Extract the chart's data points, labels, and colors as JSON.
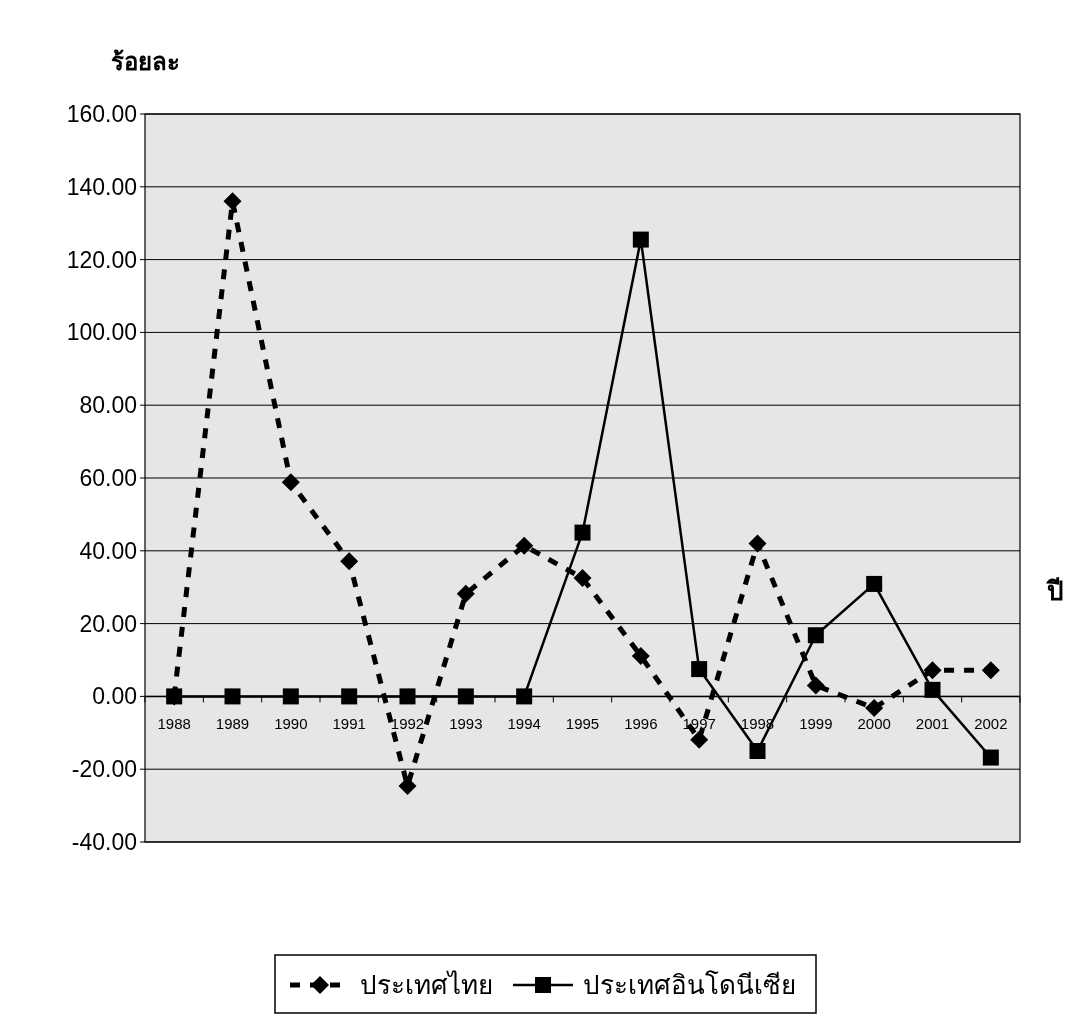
{
  "chart_data": {
    "type": "line",
    "ylabel": "ร้อยละ",
    "xlabel": "ปี",
    "categories": [
      "1988",
      "1989",
      "1990",
      "1991",
      "1992",
      "1993",
      "1994",
      "1995",
      "1996",
      "1997",
      "1998",
      "1999",
      "2000",
      "2001",
      "2002"
    ],
    "series": [
      {
        "name": "ประเทศไทย",
        "color": "#000000",
        "marker": "diamond",
        "line_style": "dashed",
        "values": [
          0,
          136,
          58.8,
          37.1,
          -24.6,
          28.2,
          41.4,
          32.5,
          11.1,
          -11.9,
          42,
          3,
          -3.2,
          7.2,
          7.2
        ]
      },
      {
        "name": "ประเทศอินโดนีเซีย",
        "color": "#000000",
        "marker": "square",
        "line_style": "solid",
        "values": [
          0,
          0,
          0,
          0,
          0,
          0,
          0,
          45,
          125.5,
          7.5,
          -15,
          16.8,
          30.9,
          1.8,
          -16.8
        ]
      }
    ],
    "ylim": [
      -40,
      160
    ],
    "yticks": [
      {
        "value": -40,
        "label": "-40.00"
      },
      {
        "value": -20,
        "label": "-20.00"
      },
      {
        "value": 0,
        "label": "0.00"
      },
      {
        "value": 20,
        "label": "20.00"
      },
      {
        "value": 40,
        "label": "40.00"
      },
      {
        "value": 60,
        "label": "60.00"
      },
      {
        "value": 80,
        "label": "80.00"
      },
      {
        "value": 100,
        "label": "100.00"
      },
      {
        "value": 120,
        "label": "120.00"
      },
      {
        "value": 140,
        "label": "140.00"
      },
      {
        "value": 160,
        "label": "160.00"
      }
    ],
    "grid": "y",
    "legend": "bottom"
  }
}
